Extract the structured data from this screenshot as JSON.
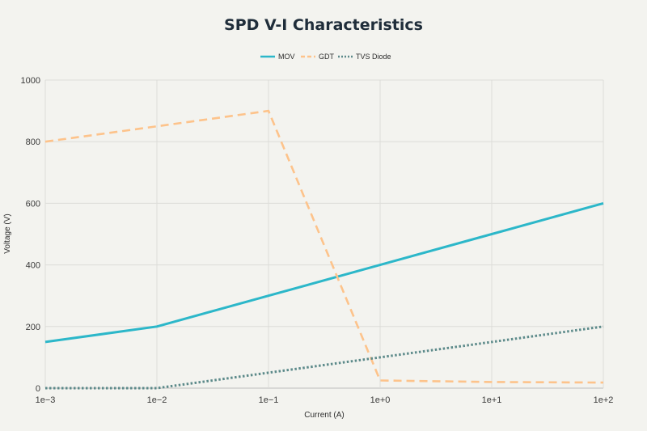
{
  "chart_data": {
    "type": "line",
    "title": "SPD V-I Characteristics",
    "xlabel": "Current (A)",
    "ylabel": "Voltage (V)",
    "xscale": "log",
    "x": [
      0.001,
      0.01,
      0.1,
      1,
      10,
      100
    ],
    "xtick_labels": [
      "1e−3",
      "1e−2",
      "1e−1",
      "1e+0",
      "1e+1",
      "1e+2"
    ],
    "ylim": [
      0,
      1000
    ],
    "yticks": [
      0,
      200,
      400,
      600,
      800,
      1000
    ],
    "grid": true,
    "legend_position": "top-center",
    "series": [
      {
        "name": "MOV",
        "color": "#2cb7c9",
        "style": "solid",
        "values": [
          150,
          200,
          300,
          400,
          500,
          600
        ]
      },
      {
        "name": "GDT",
        "color": "#fdc38b",
        "style": "dashed",
        "values": [
          800,
          850,
          900,
          25,
          20,
          18
        ]
      },
      {
        "name": "TVS Diode",
        "color": "#5c8a8a",
        "style": "dotted",
        "values": [
          0,
          0,
          50,
          100,
          150,
          200
        ]
      }
    ]
  }
}
